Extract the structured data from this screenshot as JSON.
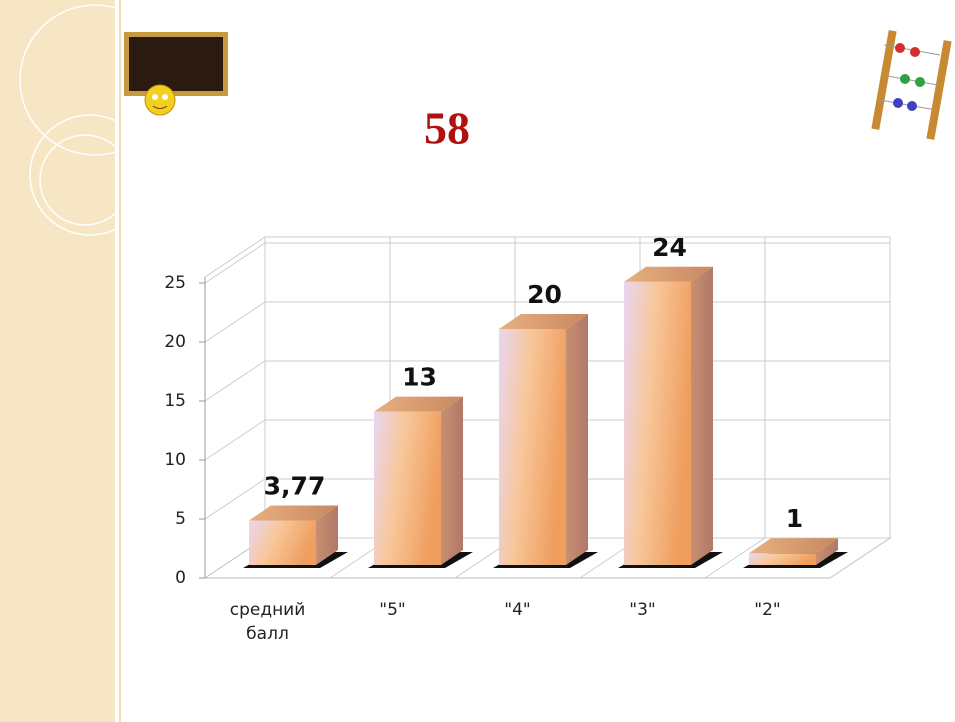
{
  "chart_data": {
    "type": "bar3d",
    "title": "58",
    "categories": [
      "средний балл",
      "\"5\"",
      "\"4\"",
      "\"3\"",
      "\"2\""
    ],
    "values": [
      3.77,
      13,
      20,
      24,
      1
    ],
    "value_labels": [
      "3,77",
      "13",
      "20",
      "24",
      "1"
    ],
    "ylim": [
      0,
      25
    ],
    "yticks": [
      0,
      5,
      10,
      15,
      20,
      25
    ],
    "grid": true
  }
}
